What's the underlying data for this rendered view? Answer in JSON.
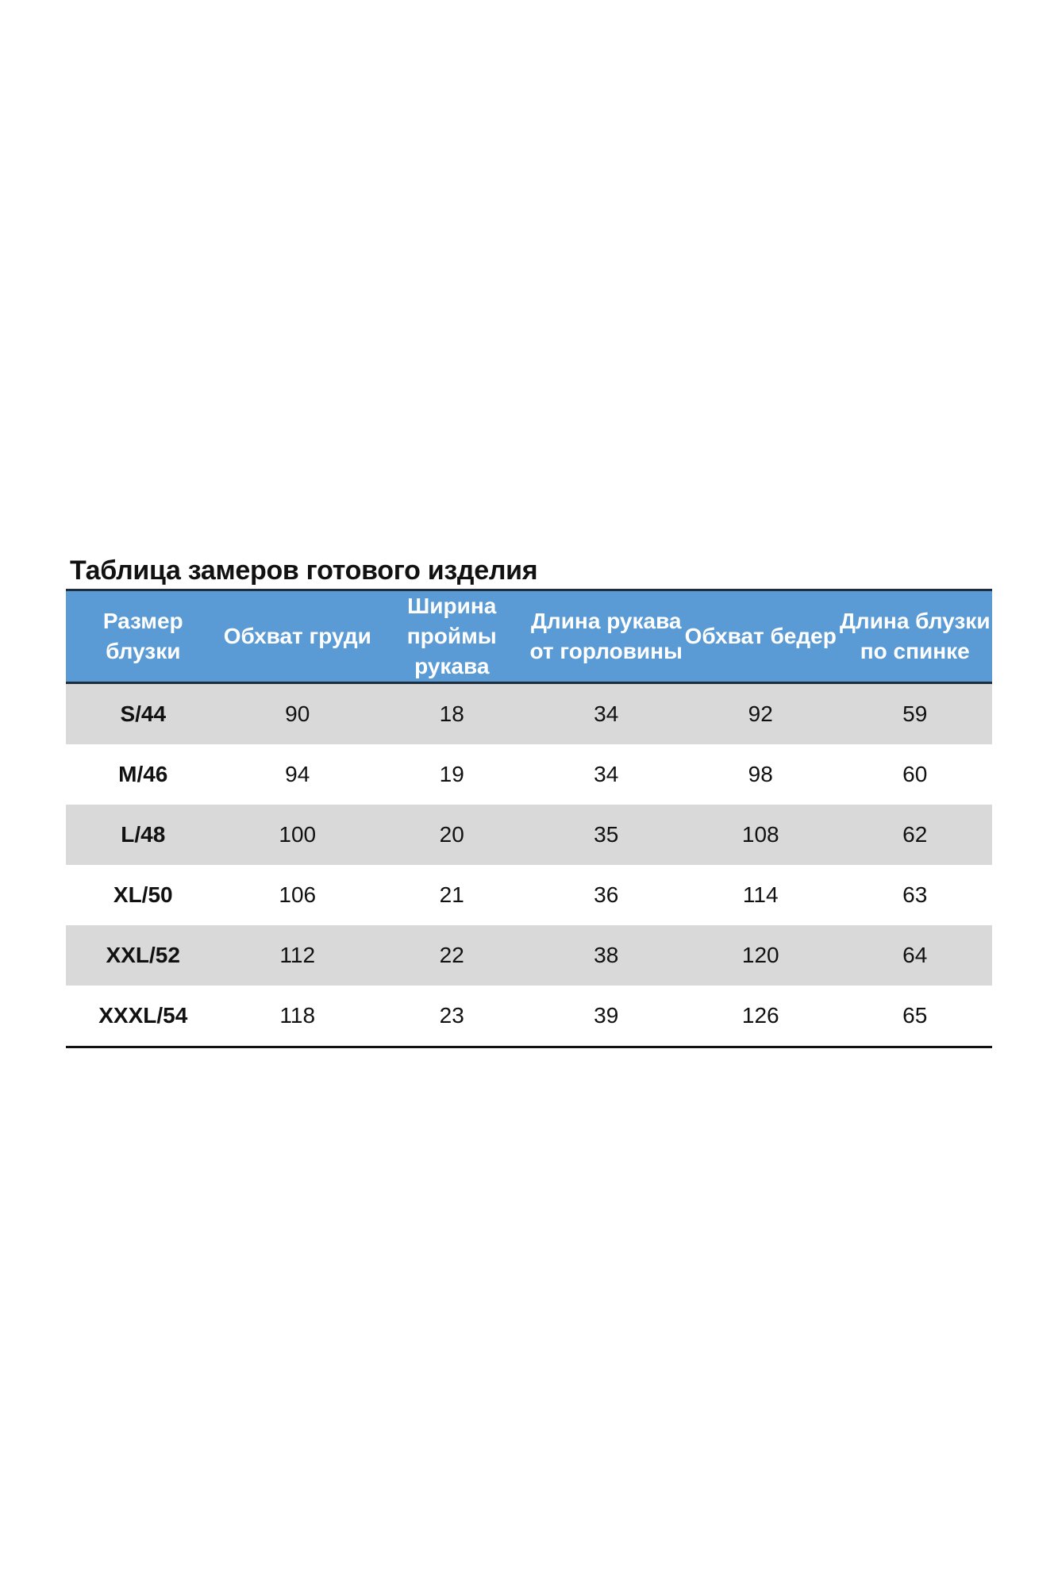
{
  "title": "Таблица замеров готового изделия",
  "colors": {
    "header": "#5b9bd5",
    "stripe": "#d9d9d9"
  },
  "table": {
    "headers": [
      "Размер блузки",
      "Обхват груди",
      "Ширина проймы рукава",
      "Длина рукава от горловины",
      "Обхват бедер",
      "Длина блузки по спинке"
    ],
    "rows": [
      [
        "S/44",
        "90",
        "18",
        "34",
        "92",
        "59"
      ],
      [
        "M/46",
        "94",
        "19",
        "34",
        "98",
        "60"
      ],
      [
        "L/48",
        "100",
        "20",
        "35",
        "108",
        "62"
      ],
      [
        "XL/50",
        "106",
        "21",
        "36",
        "114",
        "63"
      ],
      [
        "XXL/52",
        "112",
        "22",
        "38",
        "120",
        "64"
      ],
      [
        "XXXL/54",
        "118",
        "23",
        "39",
        "126",
        "65"
      ]
    ]
  }
}
